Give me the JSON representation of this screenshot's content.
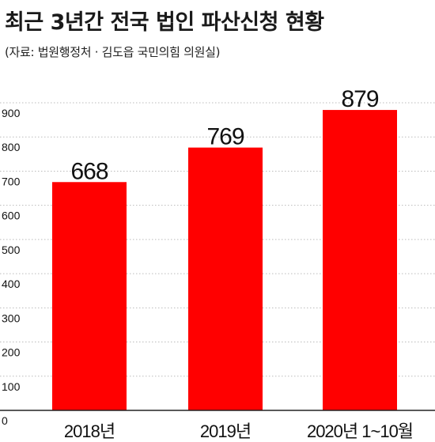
{
  "header": {
    "title": "최근 3년간 전국 법인 파산신청 현황",
    "source": "(자료: 법원행정처 · 김도읍 국민의힘 의원실)"
  },
  "chart_data": {
    "type": "bar",
    "title": "최근 3년간 전국 법인 파산신청 현황",
    "xlabel": "",
    "ylabel": "",
    "categories": [
      "2018년",
      "2019년",
      "2020년 1~10월"
    ],
    "values": [
      668,
      769,
      879
    ],
    "data_labels": [
      "668",
      "769",
      "879"
    ],
    "ylim": [
      0,
      900
    ],
    "yticks": [
      0,
      100,
      200,
      300,
      400,
      500,
      600,
      700,
      800,
      900
    ],
    "grid": true,
    "grid_style": "dotted",
    "legend": "none",
    "colors": {
      "bar": "#ff0000",
      "grid": "#bbbbbb",
      "axis": "#222222",
      "text": "#111111"
    }
  }
}
